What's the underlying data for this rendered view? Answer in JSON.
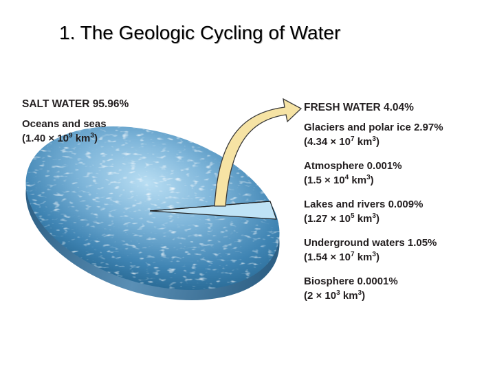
{
  "title": "1. The Geologic Cycling of Water",
  "colors": {
    "arrow_fill": "#f6e3a4",
    "arrow_stroke": "#3a3a3a",
    "water_light": "#a9d4ee",
    "water_dark": "#1e5d86",
    "disk_edge": "#4b7ea3",
    "text": "#231f20"
  },
  "salt": {
    "heading": "SALT WATER 95.96%",
    "name": "Oceans and seas",
    "volume": {
      "prefix": "(1.40 × 10",
      "exp": "9",
      "mid": " km",
      "unit_exp": "3",
      "suffix": ")"
    }
  },
  "fresh": {
    "heading": "FRESH WATER 4.04%",
    "items": [
      {
        "name": "Glaciers and polar ice 2.97%",
        "volume": {
          "prefix": "(4.34 × 10",
          "exp": "7",
          "mid": " km",
          "unit_exp": "3",
          "suffix": ")"
        }
      },
      {
        "name": "Atmosphere 0.001%",
        "volume": {
          "prefix": "(1.5 × 10",
          "exp": "4",
          "mid": " km",
          "unit_exp": "3",
          "suffix": ")"
        }
      },
      {
        "name": "Lakes and rivers 0.009%",
        "volume": {
          "prefix": "(1.27 × 10",
          "exp": "5",
          "mid": " km",
          "unit_exp": "3",
          "suffix": ")"
        }
      },
      {
        "name": "Underground waters 1.05%",
        "volume": {
          "prefix": "(1.54 × 10",
          "exp": "7",
          "mid": " km",
          "unit_exp": "3",
          "suffix": ")"
        }
      },
      {
        "name": "Biosphere 0.0001%",
        "volume": {
          "prefix": "(2 × 10",
          "exp": "3",
          "mid": " km",
          "unit_exp": "3",
          "suffix": ")"
        }
      }
    ]
  }
}
